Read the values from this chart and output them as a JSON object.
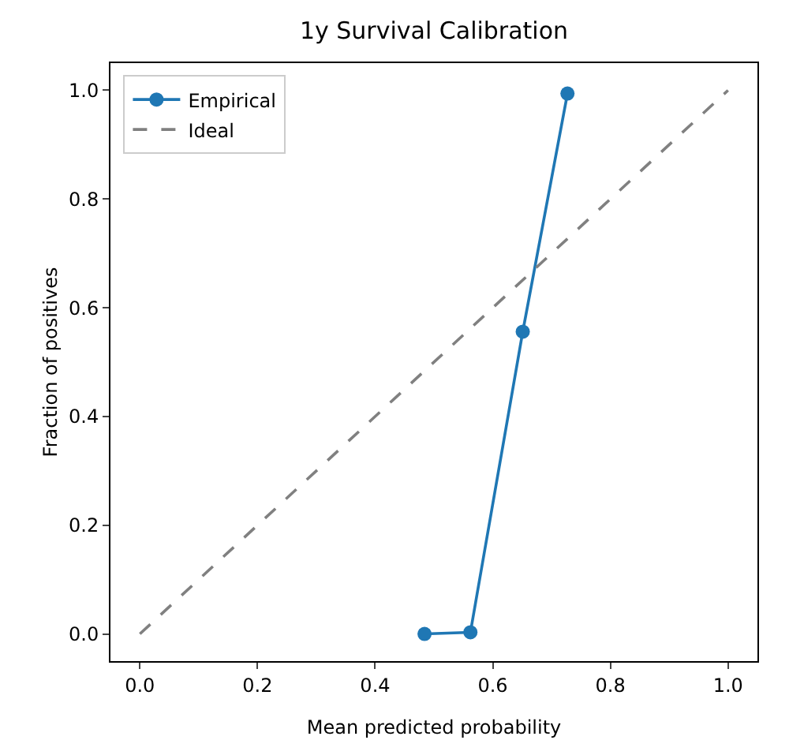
{
  "chart_data": {
    "type": "line",
    "title": "1y Survival Calibration",
    "xlabel": "Mean predicted probability",
    "ylabel": "Fraction of positives",
    "series": [
      {
        "name": "Empirical",
        "color": "#1f77b4",
        "x": [
          0.484,
          0.562,
          0.651,
          0.727
        ],
        "values": [
          0.0,
          0.003,
          0.556,
          0.994
        ],
        "marker": "circle",
        "line_style": "solid"
      },
      {
        "name": "Ideal",
        "color": "#808080",
        "x": [
          0,
          1
        ],
        "values": [
          0,
          1
        ],
        "marker": "none",
        "line_style": "dashed"
      }
    ],
    "xlim": [
      -0.05,
      1.05
    ],
    "ylim": [
      -0.05,
      1.05
    ],
    "xticks": [
      {
        "value": 0,
        "label": "0.0"
      },
      {
        "value": 0.2,
        "label": "0.2"
      },
      {
        "value": 0.4,
        "label": "0.4"
      },
      {
        "value": 0.6,
        "label": "0.6"
      },
      {
        "value": 0.8,
        "label": "0.8"
      },
      {
        "value": 1,
        "label": "1.0"
      }
    ],
    "yticks": [
      {
        "value": 0,
        "label": "0.0"
      },
      {
        "value": 0.2,
        "label": "0.2"
      },
      {
        "value": 0.4,
        "label": "0.4"
      },
      {
        "value": 0.6,
        "label": "0.6"
      },
      {
        "value": 0.8,
        "label": "0.8"
      },
      {
        "value": 1,
        "label": "1.0"
      }
    ],
    "grid": false,
    "legend": "top left"
  }
}
